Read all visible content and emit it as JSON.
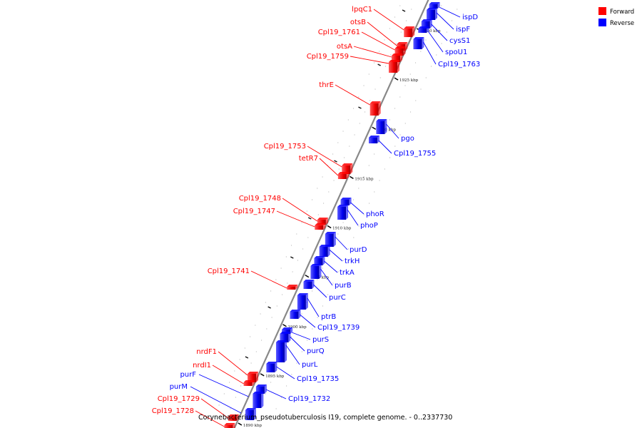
{
  "caption": "Corynebacterium_pseudotuberculosis I19, complete genome. - 0..2337730",
  "legend": [
    {
      "label": "Forward",
      "color": "#ff0000"
    },
    {
      "label": "Reverse",
      "color": "#0000ff"
    }
  ],
  "colors": {
    "forward": "#ff0000",
    "reverse": "#0000ff",
    "backbone": "#888888"
  },
  "scale_ticks": [
    {
      "label": "1930 kbp",
      "kbp": 1930
    },
    {
      "label": "1925 kbp",
      "kbp": 1925
    },
    {
      "label": "1920 kbp",
      "kbp": 1920
    },
    {
      "label": "1915 kbp",
      "kbp": 1915
    },
    {
      "label": "1910 kbp",
      "kbp": 1910
    },
    {
      "label": "1905 kbp",
      "kbp": 1905
    },
    {
      "label": "1900 kbp",
      "kbp": 1900
    },
    {
      "label": "1895 kbp",
      "kbp": 1895
    },
    {
      "label": "1890 kbp",
      "kbp": 1890
    }
  ],
  "forward_genes": [
    {
      "label": "lpqC1"
    },
    {
      "label": "otsB"
    },
    {
      "label": "Cpl19_1761"
    },
    {
      "label": "otsA"
    },
    {
      "label": "Cpl19_1759"
    },
    {
      "label": "thrE"
    },
    {
      "label": "Cpl19_1753"
    },
    {
      "label": "tetR7"
    },
    {
      "label": "Cpl19_1748"
    },
    {
      "label": "Cpl19_1747"
    },
    {
      "label": "Cpl19_1741"
    },
    {
      "label": "nrdF1"
    },
    {
      "label": "nrdI1"
    },
    {
      "label": "Cpl19_1729"
    },
    {
      "label": "Cpl19_1728"
    }
  ],
  "reverse_genes": [
    {
      "label": "ispD"
    },
    {
      "label": "ispF"
    },
    {
      "label": "cysS1"
    },
    {
      "label": "spoU1"
    },
    {
      "label": "Cpl19_1763"
    },
    {
      "label": "pgo"
    },
    {
      "label": "Cpl19_1755"
    },
    {
      "label": "phoR"
    },
    {
      "label": "phoP"
    },
    {
      "label": "purD"
    },
    {
      "label": "trkH"
    },
    {
      "label": "trkA"
    },
    {
      "label": "purB"
    },
    {
      "label": "purC"
    },
    {
      "label": "ptrB"
    },
    {
      "label": "Cpl19_1739"
    },
    {
      "label": "purS"
    },
    {
      "label": "purQ"
    },
    {
      "label": "purL"
    },
    {
      "label": "Cpl19_1735"
    },
    {
      "label": "Cpl19_1732"
    },
    {
      "label": "purF"
    },
    {
      "label": "purM"
    }
  ]
}
